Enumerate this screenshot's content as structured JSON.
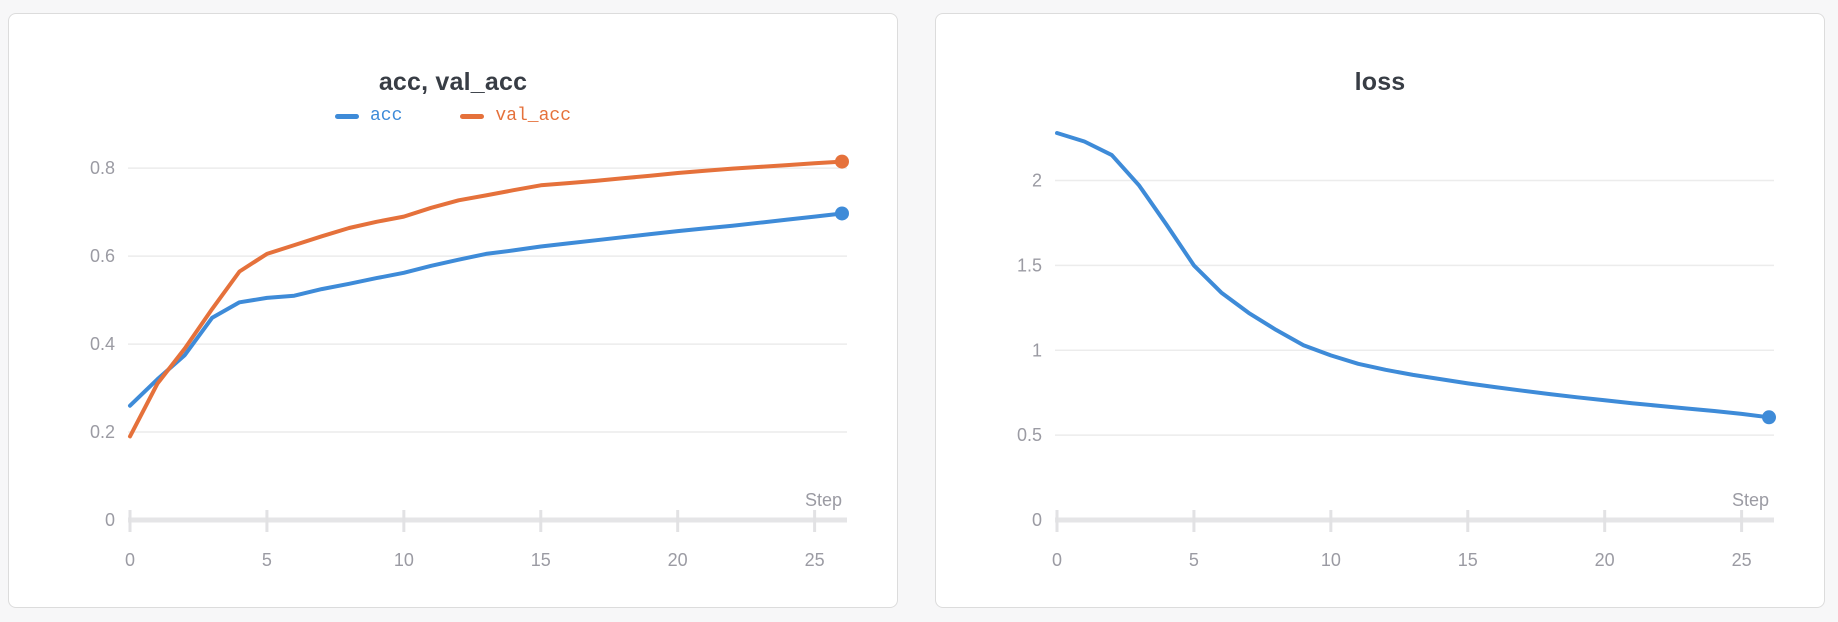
{
  "colors": {
    "accent_blue": "#3e8bd8",
    "accent_orange": "#e5713b",
    "axis_line": "#e5e5e7",
    "axis_tick": "#e2e2e4",
    "grid_line": "#ececec",
    "tick_label": "#9b9ba3",
    "title_text": "#383d45",
    "card_border": "#dcdcdc",
    "card_background": "#ffffff",
    "page_background": "#f7f7f8"
  },
  "chart_data": [
    {
      "type": "line",
      "title": "acc, val_acc",
      "xlabel": "Step",
      "x": [
        0,
        1,
        2,
        3,
        4,
        5,
        6,
        7,
        8,
        9,
        10,
        11,
        12,
        13,
        14,
        15,
        16,
        17,
        18,
        19,
        20,
        21,
        22,
        23,
        24,
        25,
        26
      ],
      "xticks": [
        0,
        5,
        10,
        15,
        20,
        25
      ],
      "yticks": [
        0,
        0.2,
        0.4,
        0.6,
        0.8
      ],
      "xlim": [
        0,
        26
      ],
      "ylim": [
        0,
        0.88
      ],
      "grid": true,
      "legend_position": "top-center",
      "series": [
        {
          "name": "acc",
          "color": "#3e8bd8",
          "end_marker": true,
          "values": [
            0.26,
            0.32,
            0.375,
            0.46,
            0.495,
            0.505,
            0.51,
            0.525,
            0.537,
            0.55,
            0.562,
            0.578,
            0.592,
            0.605,
            0.613,
            0.622,
            0.629,
            0.636,
            0.643,
            0.65,
            0.657,
            0.663,
            0.669,
            0.676,
            0.683,
            0.69,
            0.697
          ]
        },
        {
          "name": "val_acc",
          "color": "#e5713b",
          "end_marker": true,
          "values": [
            0.19,
            0.31,
            0.39,
            0.48,
            0.565,
            0.605,
            0.625,
            0.645,
            0.664,
            0.678,
            0.69,
            0.71,
            0.727,
            0.738,
            0.75,
            0.761,
            0.766,
            0.771,
            0.777,
            0.783,
            0.789,
            0.794,
            0.799,
            0.803,
            0.807,
            0.811,
            0.815
          ]
        }
      ]
    },
    {
      "type": "line",
      "title": "loss",
      "xlabel": "Step",
      "x": [
        0,
        1,
        2,
        3,
        4,
        5,
        6,
        7,
        8,
        9,
        10,
        11,
        12,
        13,
        14,
        15,
        16,
        17,
        18,
        19,
        20,
        21,
        22,
        23,
        24,
        25,
        26
      ],
      "xticks": [
        0,
        5,
        10,
        15,
        20,
        25
      ],
      "yticks": [
        0,
        0.5,
        1,
        1.5,
        2
      ],
      "xlim": [
        0,
        26
      ],
      "ylim": [
        0,
        2.28
      ],
      "grid": true,
      "legend_position": "none",
      "series": [
        {
          "name": "loss",
          "color": "#3e8bd8",
          "end_marker": true,
          "values": [
            2.28,
            2.23,
            2.15,
            1.97,
            1.74,
            1.5,
            1.34,
            1.22,
            1.12,
            1.03,
            0.97,
            0.92,
            0.885,
            0.855,
            0.83,
            0.805,
            0.783,
            0.762,
            0.742,
            0.723,
            0.705,
            0.688,
            0.672,
            0.657,
            0.642,
            0.625,
            0.605
          ]
        }
      ]
    }
  ]
}
